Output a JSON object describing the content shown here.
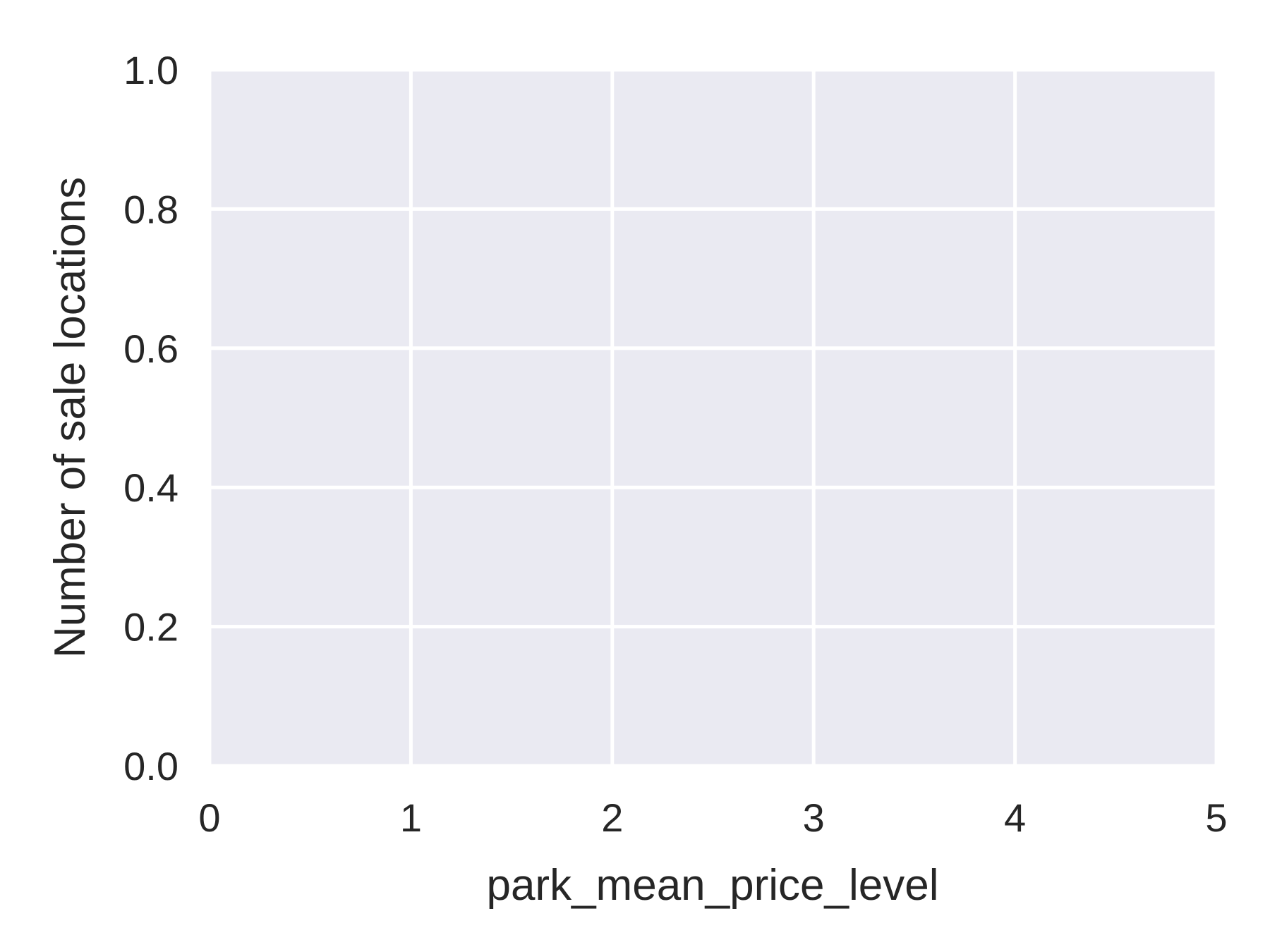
{
  "chart_data": {
    "type": "bar",
    "xlabel": "park_mean_price_level",
    "ylabel": "Number of sale locations",
    "xlim": [
      0,
      5
    ],
    "ylim": [
      0.0,
      1.0
    ],
    "xticks": [
      "0",
      "1",
      "2",
      "3",
      "4",
      "5"
    ],
    "yticks": [
      "0.0",
      "0.2",
      "0.4",
      "0.6",
      "0.8",
      "1.0"
    ],
    "grid": true,
    "categories": [],
    "values": [],
    "colors": {
      "plot_background": "#EAEAF2",
      "grid": "#FFFFFF",
      "text": "#262626"
    }
  }
}
